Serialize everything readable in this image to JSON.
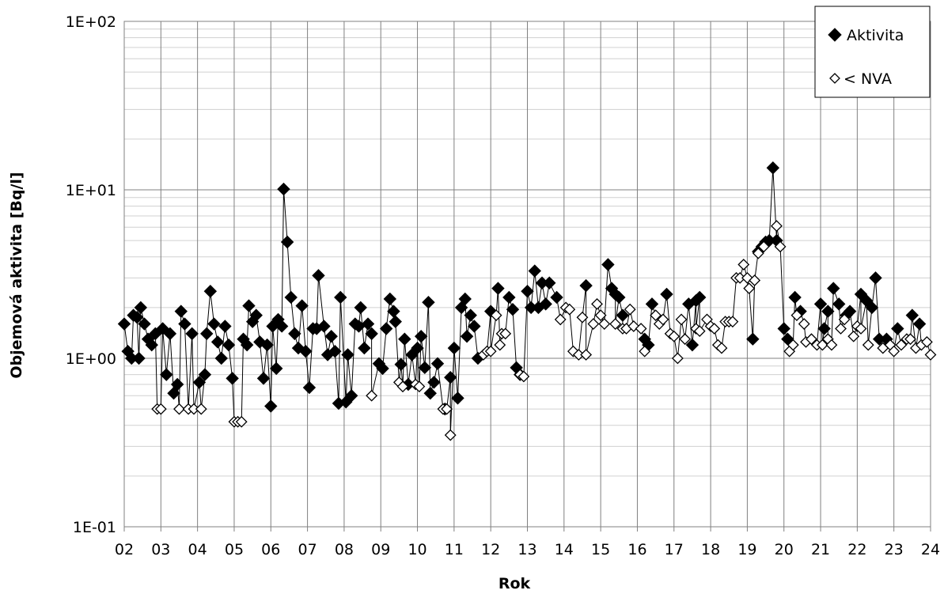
{
  "chart_data": {
    "type": "scatter",
    "title": "",
    "xlabel": "Rok",
    "ylabel": "Objemová aktivita [Bq/l]",
    "y_scale": "log",
    "ylim": [
      0.1,
      100
    ],
    "xlim": [
      2,
      24
    ],
    "x_tick_labels": [
      "02",
      "03",
      "04",
      "05",
      "06",
      "07",
      "08",
      "09",
      "10",
      "11",
      "12",
      "13",
      "14",
      "15",
      "16",
      "17",
      "18",
      "19",
      "20",
      "21",
      "22",
      "23",
      "24"
    ],
    "y_tick_labels": [
      "1E-01",
      "1E+00",
      "1E+01",
      "1E+02"
    ],
    "grid": true,
    "legend_position": "top-right",
    "series": [
      {
        "name": "Aktivita",
        "marker": "filled-diamond",
        "color": "#000000",
        "points": [
          [
            2.0,
            1.6
          ],
          [
            2.1,
            1.1
          ],
          [
            2.2,
            1.0
          ],
          [
            2.25,
            1.8
          ],
          [
            2.35,
            1.75
          ],
          [
            2.4,
            1.0
          ],
          [
            2.45,
            2.0
          ],
          [
            2.55,
            1.6
          ],
          [
            2.65,
            1.3
          ],
          [
            2.75,
            1.2
          ],
          [
            2.85,
            1.4
          ],
          [
            3.05,
            1.5
          ],
          [
            3.15,
            0.8
          ],
          [
            3.25,
            1.4
          ],
          [
            3.35,
            0.62
          ],
          [
            3.45,
            0.7
          ],
          [
            3.55,
            1.9
          ],
          [
            3.65,
            1.6
          ],
          [
            3.85,
            1.4
          ],
          [
            4.05,
            0.72
          ],
          [
            4.2,
            0.8
          ],
          [
            4.25,
            1.4
          ],
          [
            4.35,
            2.5
          ],
          [
            4.45,
            1.6
          ],
          [
            4.55,
            1.25
          ],
          [
            4.65,
            1.0
          ],
          [
            4.75,
            1.55
          ],
          [
            4.85,
            1.2
          ],
          [
            4.95,
            0.76
          ],
          [
            5.25,
            1.3
          ],
          [
            5.35,
            1.2
          ],
          [
            5.4,
            2.05
          ],
          [
            5.5,
            1.65
          ],
          [
            5.6,
            1.8
          ],
          [
            5.7,
            1.25
          ],
          [
            5.8,
            0.76
          ],
          [
            5.9,
            1.2
          ],
          [
            6.0,
            0.52
          ],
          [
            6.05,
            1.55
          ],
          [
            6.15,
            0.87
          ],
          [
            6.2,
            1.7
          ],
          [
            6.3,
            1.55
          ],
          [
            6.35,
            10.1
          ],
          [
            6.45,
            4.9
          ],
          [
            6.55,
            2.3
          ],
          [
            6.65,
            1.4
          ],
          [
            6.75,
            1.15
          ],
          [
            6.85,
            2.05
          ],
          [
            6.95,
            1.1
          ],
          [
            7.05,
            0.67
          ],
          [
            7.15,
            1.5
          ],
          [
            7.25,
            1.5
          ],
          [
            7.3,
            3.1
          ],
          [
            7.45,
            1.55
          ],
          [
            7.55,
            1.05
          ],
          [
            7.65,
            1.35
          ],
          [
            7.75,
            1.1
          ],
          [
            7.85,
            0.54
          ],
          [
            7.9,
            2.3
          ],
          [
            8.05,
            0.55
          ],
          [
            8.1,
            1.05
          ],
          [
            8.2,
            0.6
          ],
          [
            8.3,
            1.6
          ],
          [
            8.4,
            1.55
          ],
          [
            8.45,
            2.0
          ],
          [
            8.55,
            1.15
          ],
          [
            8.65,
            1.6
          ],
          [
            8.75,
            1.4
          ],
          [
            8.95,
            0.93
          ],
          [
            9.05,
            0.87
          ],
          [
            9.15,
            1.5
          ],
          [
            9.25,
            2.25
          ],
          [
            9.35,
            1.9
          ],
          [
            9.4,
            1.65
          ],
          [
            9.55,
            0.92
          ],
          [
            9.65,
            1.3
          ],
          [
            9.75,
            0.7
          ],
          [
            9.85,
            1.05
          ],
          [
            10.0,
            1.15
          ],
          [
            10.1,
            1.35
          ],
          [
            10.2,
            0.88
          ],
          [
            10.3,
            2.15
          ],
          [
            10.35,
            0.62
          ],
          [
            10.45,
            0.72
          ],
          [
            10.55,
            0.93
          ],
          [
            10.75,
            0.5
          ],
          [
            10.9,
            0.77
          ],
          [
            11.0,
            1.15
          ],
          [
            11.1,
            0.58
          ],
          [
            11.2,
            2.0
          ],
          [
            11.3,
            2.25
          ],
          [
            11.35,
            1.35
          ],
          [
            11.45,
            1.8
          ],
          [
            11.55,
            1.55
          ],
          [
            11.65,
            1.0
          ],
          [
            12.0,
            1.9
          ],
          [
            12.2,
            2.6
          ],
          [
            12.5,
            2.3
          ],
          [
            12.6,
            1.95
          ],
          [
            12.7,
            0.88
          ],
          [
            12.8,
            0.8
          ],
          [
            13.0,
            2.5
          ],
          [
            13.1,
            2.0
          ],
          [
            13.2,
            3.3
          ],
          [
            13.3,
            2.0
          ],
          [
            13.4,
            2.8
          ],
          [
            13.5,
            2.1
          ],
          [
            13.6,
            2.8
          ],
          [
            13.8,
            2.3
          ],
          [
            14.6,
            2.7
          ],
          [
            15.2,
            3.6
          ],
          [
            15.3,
            2.6
          ],
          [
            15.4,
            2.4
          ],
          [
            15.5,
            2.3
          ],
          [
            15.6,
            1.8
          ],
          [
            16.2,
            1.3
          ],
          [
            16.3,
            1.2
          ],
          [
            16.4,
            2.1
          ],
          [
            16.8,
            2.4
          ],
          [
            17.4,
            2.1
          ],
          [
            17.5,
            1.2
          ],
          [
            17.6,
            2.2
          ],
          [
            17.7,
            2.3
          ],
          [
            19.15,
            1.3
          ],
          [
            19.3,
            4.3
          ],
          [
            19.4,
            4.6
          ],
          [
            19.5,
            4.9
          ],
          [
            19.6,
            5.0
          ],
          [
            19.7,
            13.5
          ],
          [
            19.8,
            5.0
          ],
          [
            20.0,
            1.5
          ],
          [
            20.1,
            1.3
          ],
          [
            20.3,
            2.3
          ],
          [
            20.45,
            1.9
          ],
          [
            21.0,
            2.1
          ],
          [
            21.1,
            1.5
          ],
          [
            21.2,
            1.9
          ],
          [
            21.35,
            2.6
          ],
          [
            21.5,
            2.1
          ],
          [
            21.7,
            1.8
          ],
          [
            21.8,
            1.9
          ],
          [
            22.1,
            2.4
          ],
          [
            22.25,
            2.2
          ],
          [
            22.4,
            2.0
          ],
          [
            22.5,
            3.0
          ],
          [
            22.6,
            1.3
          ],
          [
            22.8,
            1.3
          ],
          [
            23.1,
            1.5
          ],
          [
            23.5,
            1.8
          ],
          [
            23.7,
            1.6
          ]
        ]
      },
      {
        "name": "< NVA",
        "marker": "open-diamond",
        "color": "#000000",
        "points": [
          [
            2.9,
            0.5
          ],
          [
            3.0,
            0.5
          ],
          [
            3.5,
            0.5
          ],
          [
            3.75,
            0.5
          ],
          [
            3.9,
            0.5
          ],
          [
            4.1,
            0.5
          ],
          [
            5.0,
            0.42
          ],
          [
            5.1,
            0.42
          ],
          [
            5.2,
            0.42
          ],
          [
            8.75,
            0.6
          ],
          [
            9.5,
            0.72
          ],
          [
            9.6,
            0.68
          ],
          [
            9.95,
            0.7
          ],
          [
            10.05,
            0.68
          ],
          [
            10.7,
            0.5
          ],
          [
            10.8,
            0.5
          ],
          [
            10.9,
            0.35
          ],
          [
            11.8,
            1.05
          ],
          [
            11.9,
            1.1
          ],
          [
            12.0,
            1.1
          ],
          [
            12.15,
            1.8
          ],
          [
            12.25,
            1.2
          ],
          [
            12.3,
            1.4
          ],
          [
            12.4,
            1.4
          ],
          [
            12.8,
            0.8
          ],
          [
            12.9,
            0.78
          ],
          [
            13.9,
            1.7
          ],
          [
            14.05,
            2.0
          ],
          [
            14.15,
            1.95
          ],
          [
            14.25,
            1.1
          ],
          [
            14.4,
            1.05
          ],
          [
            14.5,
            1.75
          ],
          [
            14.6,
            1.05
          ],
          [
            14.8,
            1.6
          ],
          [
            14.9,
            2.1
          ],
          [
            15.0,
            1.8
          ],
          [
            15.1,
            1.6
          ],
          [
            15.4,
            1.6
          ],
          [
            15.6,
            1.5
          ],
          [
            15.7,
            1.5
          ],
          [
            15.8,
            1.95
          ],
          [
            15.9,
            1.55
          ],
          [
            16.1,
            1.5
          ],
          [
            16.2,
            1.1
          ],
          [
            16.5,
            1.8
          ],
          [
            16.6,
            1.6
          ],
          [
            16.7,
            1.7
          ],
          [
            16.9,
            1.4
          ],
          [
            17.0,
            1.35
          ],
          [
            17.1,
            1.0
          ],
          [
            17.2,
            1.7
          ],
          [
            17.3,
            1.3
          ],
          [
            17.6,
            1.5
          ],
          [
            17.7,
            1.45
          ],
          [
            17.9,
            1.7
          ],
          [
            18.0,
            1.55
          ],
          [
            18.1,
            1.5
          ],
          [
            18.2,
            1.2
          ],
          [
            18.3,
            1.15
          ],
          [
            18.4,
            1.65
          ],
          [
            18.5,
            1.65
          ],
          [
            18.6,
            1.65
          ],
          [
            18.7,
            3.0
          ],
          [
            18.8,
            3.0
          ],
          [
            18.9,
            3.6
          ],
          [
            19.0,
            3.0
          ],
          [
            19.05,
            2.6
          ],
          [
            19.2,
            2.9
          ],
          [
            19.3,
            4.2
          ],
          [
            19.45,
            4.6
          ],
          [
            19.8,
            6.1
          ],
          [
            19.9,
            4.6
          ],
          [
            20.15,
            1.1
          ],
          [
            20.25,
            1.2
          ],
          [
            20.35,
            1.8
          ],
          [
            20.55,
            1.6
          ],
          [
            20.6,
            1.25
          ],
          [
            20.75,
            1.3
          ],
          [
            20.9,
            1.2
          ],
          [
            21.05,
            1.2
          ],
          [
            21.2,
            1.3
          ],
          [
            21.3,
            1.2
          ],
          [
            21.55,
            1.5
          ],
          [
            21.65,
            1.7
          ],
          [
            21.9,
            1.35
          ],
          [
            22.0,
            1.55
          ],
          [
            22.1,
            1.5
          ],
          [
            22.3,
            1.2
          ],
          [
            22.7,
            1.15
          ],
          [
            22.9,
            1.2
          ],
          [
            23.0,
            1.1
          ],
          [
            23.2,
            1.2
          ],
          [
            23.35,
            1.3
          ],
          [
            23.45,
            1.3
          ],
          [
            23.6,
            1.15
          ],
          [
            23.75,
            1.2
          ],
          [
            23.9,
            1.25
          ],
          [
            24.0,
            1.05
          ]
        ]
      }
    ]
  }
}
